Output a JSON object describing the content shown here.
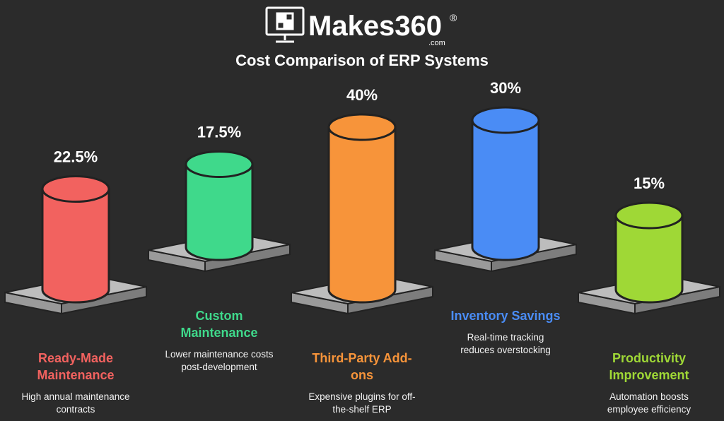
{
  "logo": {
    "name": "Makes360",
    "domain": ".com",
    "registered": "®"
  },
  "chart_data": {
    "type": "bar",
    "title": "Cost Comparison of ERP Systems",
    "categories": [
      "Ready-Made Maintenance",
      "Custom Maintenance",
      "Third-Party Add-ons",
      "Inventory Savings",
      "Productivity Improvement"
    ],
    "values": [
      22.5,
      17.5,
      40,
      30,
      15
    ],
    "value_labels": [
      "22.5%",
      "17.5%",
      "40%",
      "30%",
      "15%"
    ],
    "descriptions": [
      "High annual maintenance contracts",
      "Lower maintenance costs post-development",
      "Expensive plugins for off-the-shelf ERP",
      "Real-time tracking reduces overstocking",
      "Automation boosts employee efficiency"
    ],
    "colors": [
      "#f2625f",
      "#3fd98b",
      "#f7943a",
      "#4a8cf5",
      "#9fd836"
    ]
  }
}
